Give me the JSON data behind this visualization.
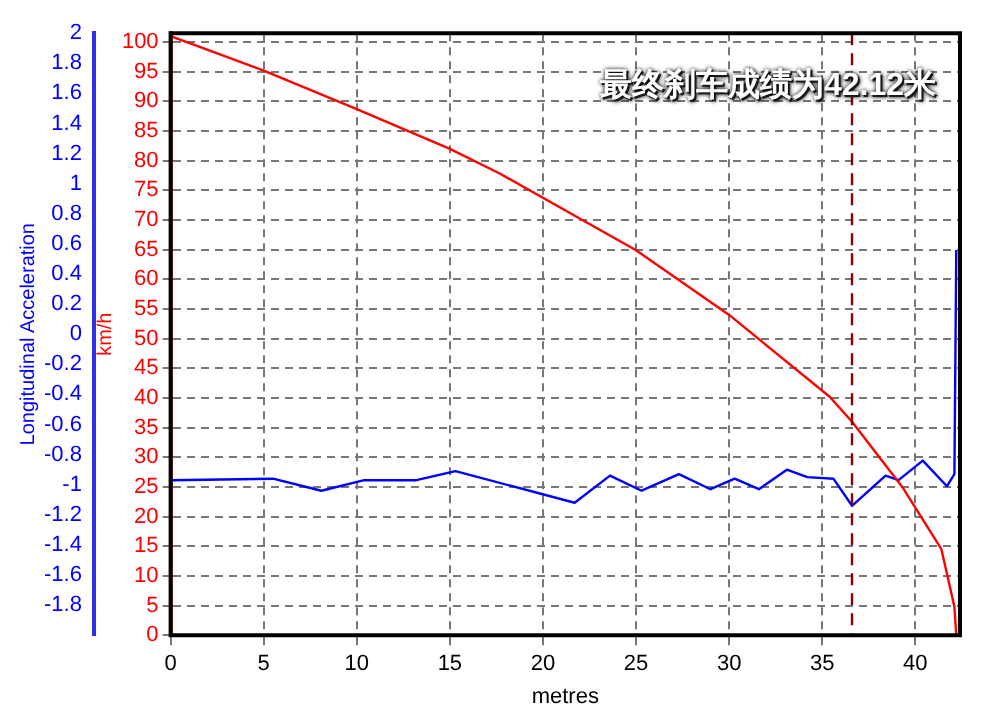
{
  "chart_data": {
    "type": "line",
    "xlabel": "metres",
    "ylabel": "km/h",
    "y2label": "Longitudinal Acceleration",
    "annotations": [
      "最终刹车成绩为42.12米"
    ],
    "xlim": [
      0,
      42.4
    ],
    "xticks": [
      0,
      5,
      10,
      15,
      20,
      25,
      30,
      35,
      40
    ],
    "ylim": [
      0,
      101.5
    ],
    "yticks": [
      0,
      5,
      10,
      15,
      20,
      25,
      30,
      35,
      40,
      45,
      50,
      55,
      60,
      65,
      70,
      75,
      80,
      85,
      90,
      95,
      100
    ],
    "y2lim": [
      -2,
      2
    ],
    "y2ticks": [
      2,
      1.8,
      1.6,
      1.4,
      1.2,
      1,
      0.8,
      0.6,
      0.4,
      0.2,
      0,
      -0.2,
      -0.4,
      -0.6,
      -0.8,
      -1,
      -1.2,
      -1.4,
      -1.6,
      -1.8
    ],
    "grid": true,
    "legend": false,
    "marker": "none",
    "line_style": "solid",
    "ref_lines": [
      {
        "axis": "x",
        "value": 36.6,
        "color": "#8b0000",
        "line_style": "dashed"
      }
    ],
    "series": [
      {
        "color": "#ff0000",
        "x": [
          0,
          5,
          10,
          15,
          17.7,
          25,
          30,
          35.4,
          36.6,
          39.3,
          41.4,
          42.1,
          42.2
        ],
        "values": [
          101,
          95.2,
          88.7,
          82,
          77.8,
          64.9,
          54,
          40.2,
          36,
          25,
          14.5,
          4.8,
          0
        ]
      },
      {
        "color": "#0000ff",
        "axis": "y2",
        "x": [
          0,
          5.5,
          8.1,
          10.4,
          13.2,
          15.3,
          21.7,
          23.6,
          25.3,
          27.3,
          29,
          30.3,
          31.6,
          33.1,
          34.2,
          35.6,
          36.6,
          38.4,
          39.1,
          40.4,
          41.7,
          42.1,
          42.2
        ],
        "values": [
          -0.97,
          -0.96,
          -1.04,
          -0.97,
          -0.97,
          -0.91,
          -1.12,
          -0.94,
          -1.04,
          -0.93,
          -1.03,
          -0.96,
          -1.03,
          -0.9,
          -0.95,
          -0.96,
          -1.14,
          -0.94,
          -0.97,
          -0.84,
          -1.01,
          -0.93,
          0.56
        ]
      }
    ]
  }
}
